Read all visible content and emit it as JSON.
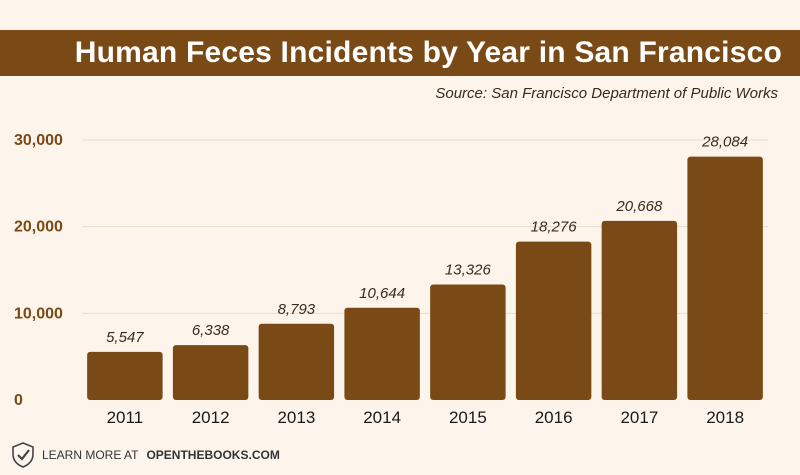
{
  "title": "Human Feces Incidents by Year in San Francisco",
  "source": "Source: San Francisco Department of Public Works",
  "footer": {
    "prefix": "LEARN MORE AT",
    "brand": "OPENTHEBOOKS.COM",
    "icon": "checkmark-shield-icon"
  },
  "colors": {
    "bar": "#7a4a16",
    "title_bar": "#7a4a16",
    "background": "#fdf5ec",
    "axis_label": "#7a4a16",
    "grid": "#e6dccd"
  },
  "chart_data": {
    "type": "bar",
    "title": "Human Feces Incidents by Year in San Francisco",
    "categories": [
      "2011",
      "2012",
      "2013",
      "2014",
      "2015",
      "2016",
      "2017",
      "2018"
    ],
    "values": [
      5547,
      6338,
      8793,
      10644,
      13326,
      18276,
      20668,
      28084
    ],
    "data_labels": [
      "5,547",
      "6,338",
      "8,793",
      "10,644",
      "13,326",
      "18,276",
      "20,668",
      "28,084"
    ],
    "ylim": [
      0,
      30000
    ],
    "yticks": [
      0,
      10000,
      20000,
      30000
    ],
    "ytick_labels": [
      "0",
      "10,000",
      "20,000",
      "30,000"
    ],
    "grid": true,
    "xlabel": "",
    "ylabel": ""
  }
}
